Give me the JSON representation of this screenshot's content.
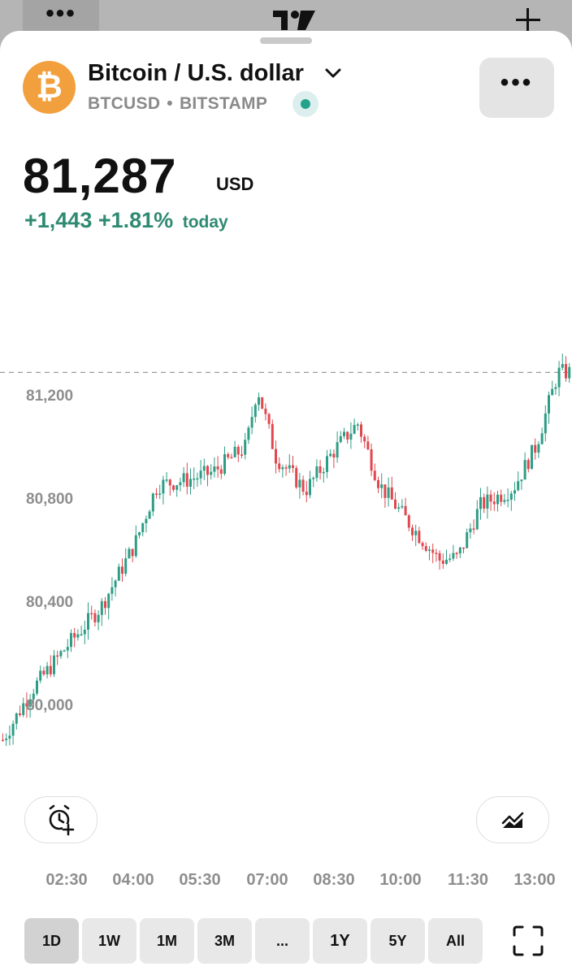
{
  "topbar": {
    "menu_label": "•••"
  },
  "header": {
    "title": "Bitcoin / U.S. dollar",
    "ticker": "BTCUSD",
    "separator": "•",
    "exchange": "BITSTAMP",
    "coin_symbol": "₿",
    "more_label": "•••"
  },
  "quote": {
    "price": "81,287",
    "currency": "USD",
    "change_abs": "+1,443",
    "change_pct": "+1.81%",
    "change_period": "today"
  },
  "colors": {
    "up": "#2e9d86",
    "down": "#e0484f",
    "accent": "#2e8a72",
    "coin": "#f2a03d"
  },
  "chart_data": {
    "type": "candlestick",
    "title": "",
    "xlabel": "",
    "ylabel": "",
    "y_ticks": [
      "81,200",
      "80,800",
      "80,400",
      "80,000"
    ],
    "y_tick_values": [
      81200,
      80800,
      80400,
      80000
    ],
    "x_ticks": [
      "02:30",
      "04:00",
      "05:30",
      "07:00",
      "08:30",
      "10:00",
      "11:30",
      "13:00"
    ],
    "last_price_line": 81287,
    "grid": false,
    "approx_close_path": [
      {
        "time": "01:00",
        "close": 79850
      },
      {
        "time": "01:40",
        "close": 80050
      },
      {
        "time": "02:30",
        "close": 80230
      },
      {
        "time": "03:15",
        "close": 80380
      },
      {
        "time": "04:00",
        "close": 80620
      },
      {
        "time": "04:30",
        "close": 80850
      },
      {
        "time": "05:10",
        "close": 80870
      },
      {
        "time": "05:45",
        "close": 80900
      },
      {
        "time": "06:30",
        "close": 81000
      },
      {
        "time": "06:45",
        "close": 81230
      },
      {
        "time": "07:10",
        "close": 80960
      },
      {
        "time": "07:50",
        "close": 80830
      },
      {
        "time": "08:30",
        "close": 80990
      },
      {
        "time": "09:00",
        "close": 81090
      },
      {
        "time": "09:30",
        "close": 80850
      },
      {
        "time": "10:10",
        "close": 80700
      },
      {
        "time": "10:50",
        "close": 80560
      },
      {
        "time": "11:15",
        "close": 80570
      },
      {
        "time": "11:45",
        "close": 80770
      },
      {
        "time": "12:30",
        "close": 80840
      },
      {
        "time": "13:00",
        "close": 81000
      },
      {
        "time": "13:30",
        "close": 81287
      }
    ]
  },
  "controls": {
    "ranges": [
      "1D",
      "1W",
      "1M",
      "3M",
      "...",
      "1Y",
      "5Y",
      "All"
    ],
    "selected_range": "1D"
  },
  "icons": {
    "alert": "alarm-plus-icon",
    "indicators": "area-chart-icon",
    "fullscreen": "fullscreen-icon",
    "dropdown": "chevron-down-icon"
  }
}
